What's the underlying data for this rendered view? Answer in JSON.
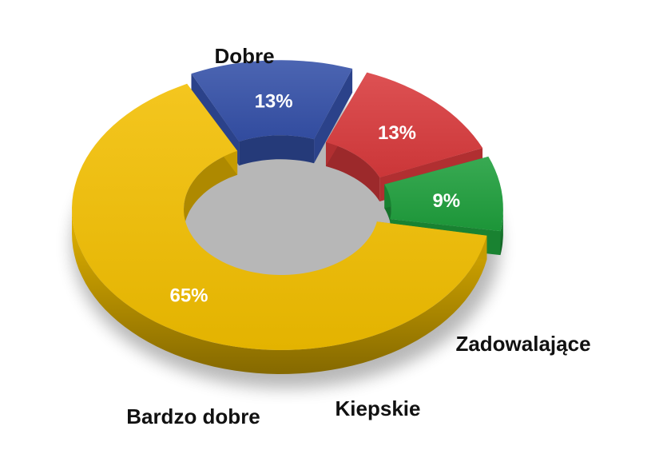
{
  "chart_data": {
    "type": "pie",
    "variant": "donut-3d",
    "title": "",
    "legend": "none",
    "slices": [
      {
        "label": "Dobre",
        "value": 65,
        "display": "65%",
        "color": "#F2BE00"
      },
      {
        "label": "Zadowalające",
        "value": 13,
        "display": "13%",
        "color": "#3450A8"
      },
      {
        "label": "Kiepskie",
        "value": 13,
        "display": "13%",
        "color": "#D8393C"
      },
      {
        "label": "Bardzo dobre",
        "value": 9,
        "display": "9%",
        "color": "#1E9E3C"
      }
    ]
  }
}
